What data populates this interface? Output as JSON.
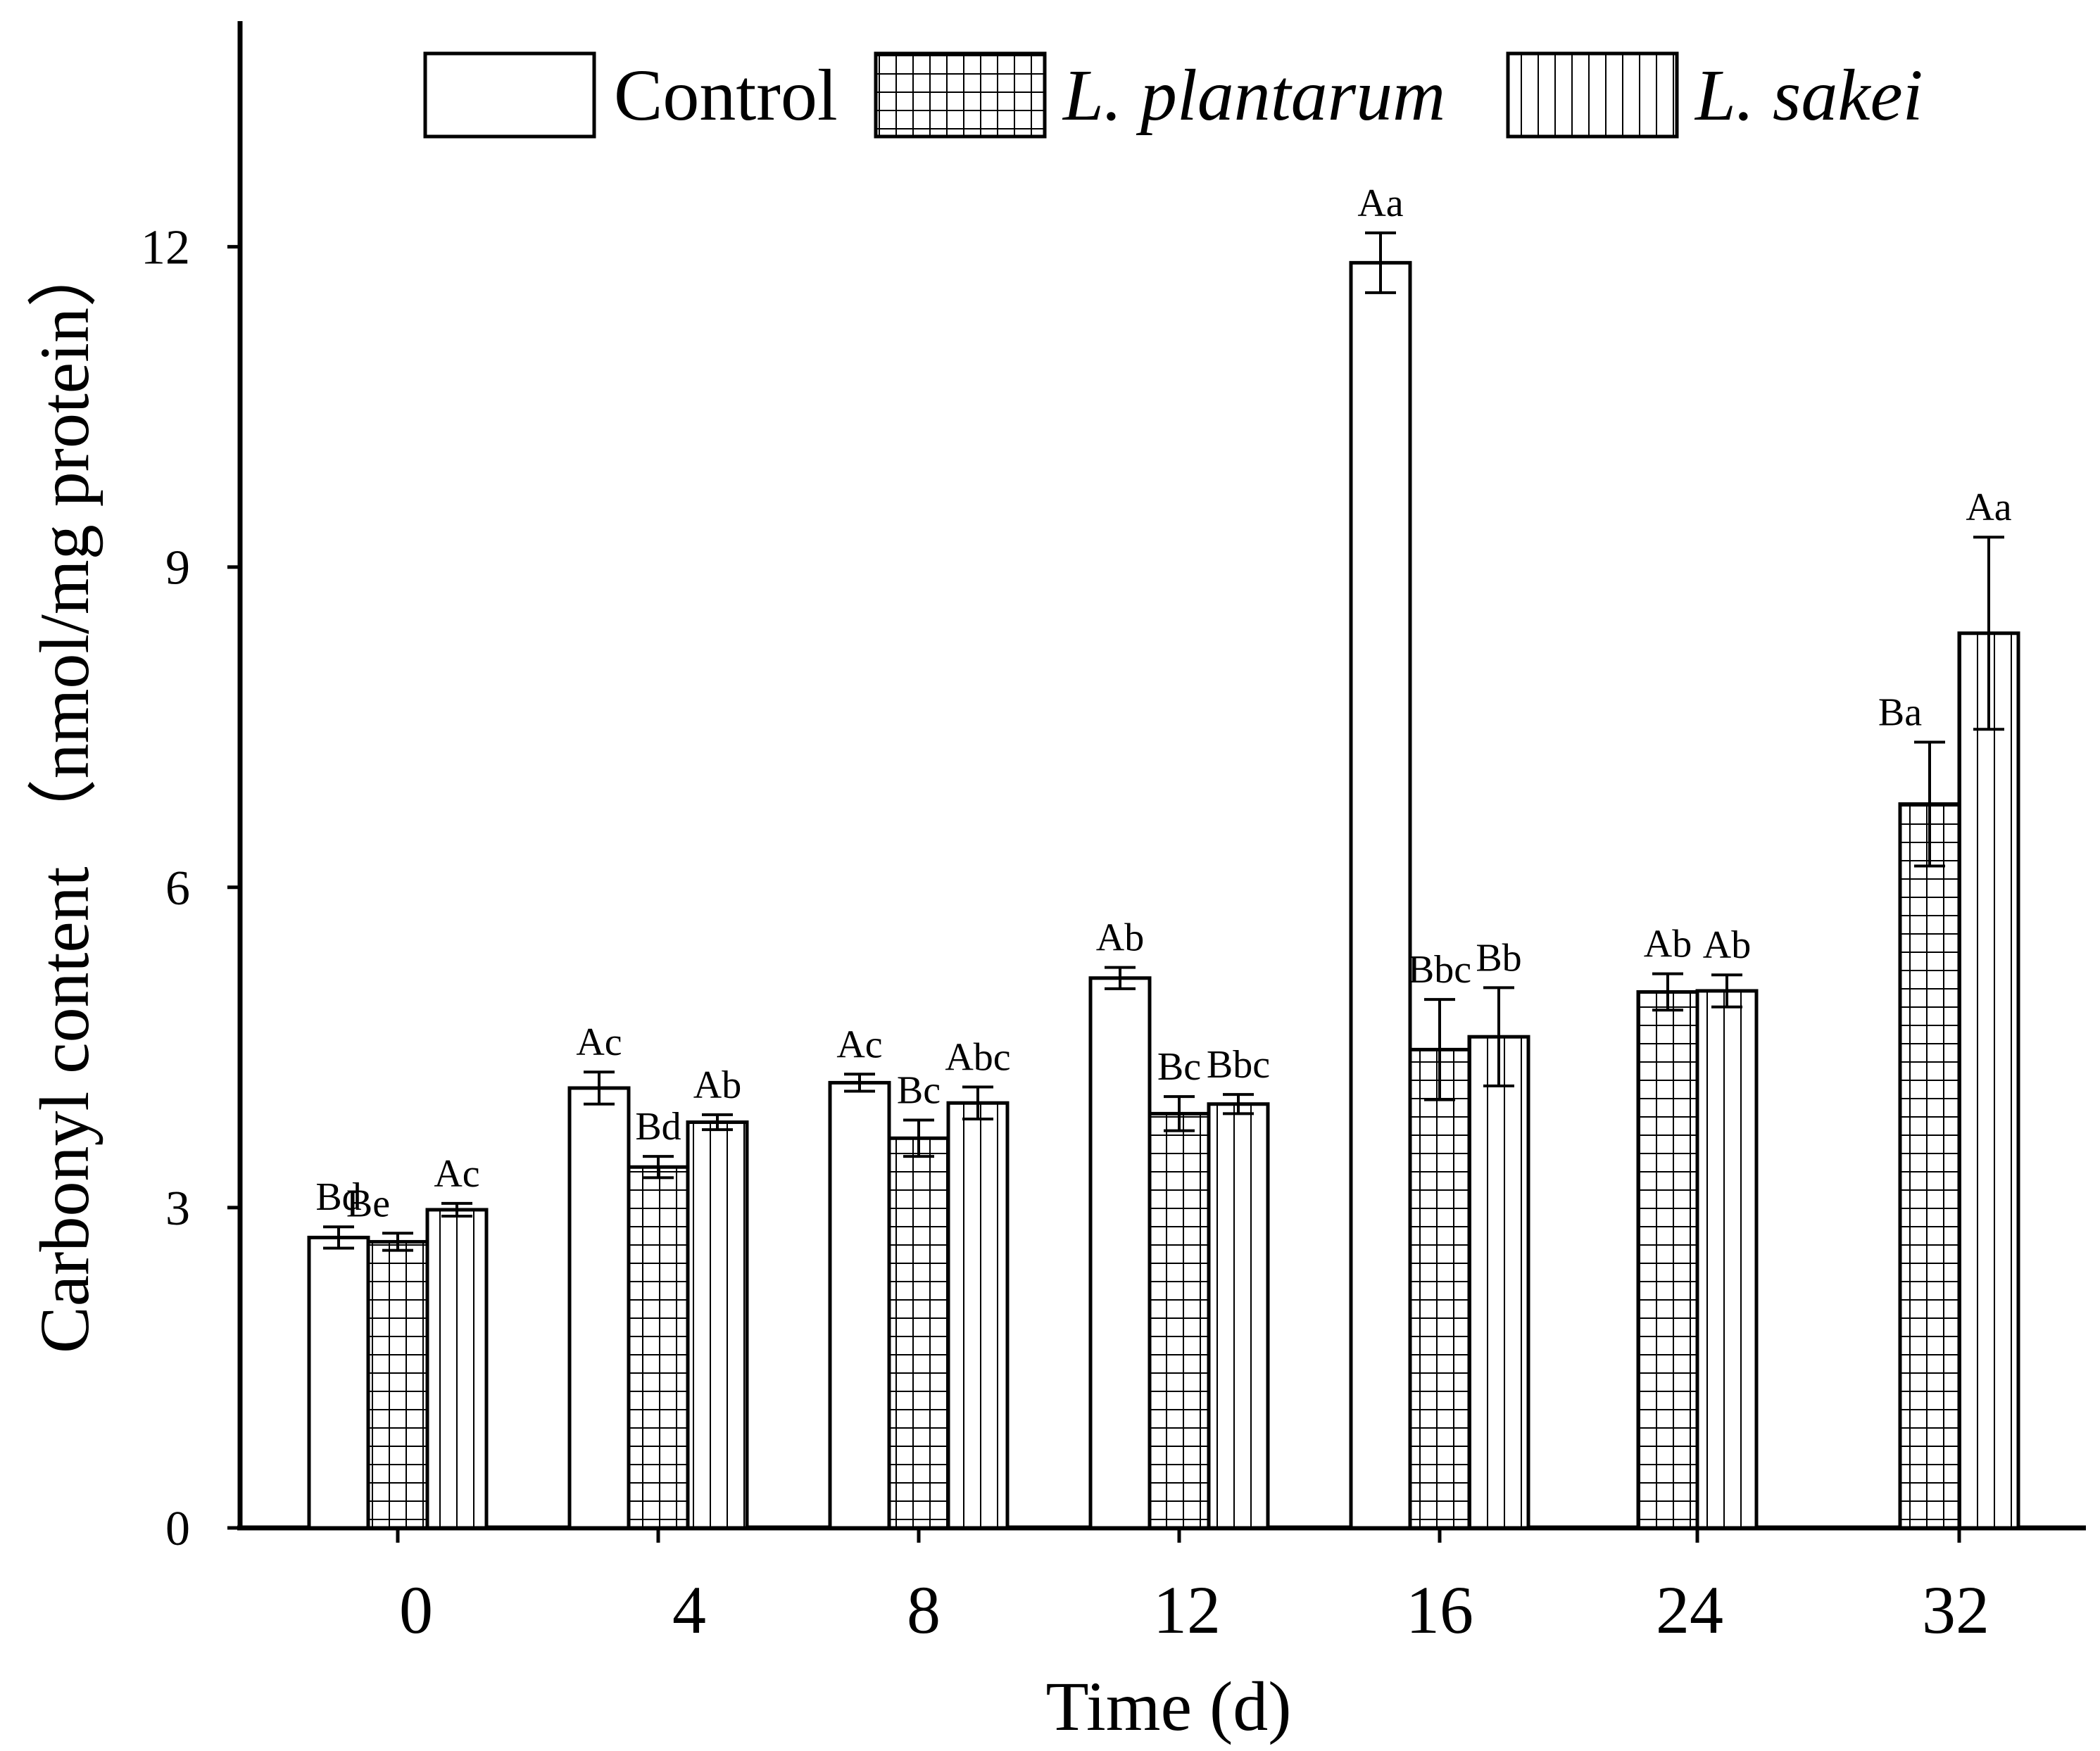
{
  "chart_data": {
    "type": "bar",
    "title": "",
    "xlabel": "Time (d)",
    "ylabel": "Carbonyl content （nmol/mg protein）",
    "ylim": [
      0,
      14.5
    ],
    "yticks": [
      "0",
      "3",
      "6",
      "9",
      "12"
    ],
    "ytick_values": [
      0,
      3,
      6,
      9,
      12
    ],
    "categories": [
      "0",
      "4",
      "8",
      "12",
      "16",
      "24",
      "32"
    ],
    "legend_position": "top",
    "series": [
      {
        "name": "Control",
        "pattern": "none",
        "values": [
          2.72,
          4.12,
          4.17,
          5.15,
          11.85,
          null,
          null
        ],
        "errors": [
          0.1,
          0.15,
          0.08,
          0.1,
          0.28,
          null,
          null
        ],
        "labels": [
          "Bd",
          "Ac",
          "Ac",
          "Ab",
          "Aa",
          null,
          null
        ]
      },
      {
        "name": "L. plantarum",
        "pattern": "grid",
        "values": [
          2.68,
          3.38,
          3.65,
          3.88,
          4.48,
          5.02,
          6.78
        ],
        "errors": [
          0.08,
          0.1,
          0.17,
          0.16,
          0.47,
          0.17,
          0.58
        ],
        "labels": [
          "Be",
          "Bd",
          "Bc",
          "Bc",
          "Bbc",
          "Ab",
          "Ba"
        ],
        "label_dx": [
          -0.5,
          0,
          0,
          0,
          0,
          0,
          -0.5
        ]
      },
      {
        "name": "L. sakei",
        "pattern": "vertical",
        "values": [
          2.98,
          3.8,
          3.98,
          3.97,
          4.6,
          5.03,
          8.38
        ],
        "errors": [
          0.06,
          0.07,
          0.15,
          0.09,
          0.46,
          0.15,
          0.9
        ],
        "labels": [
          "Ac",
          "Ab",
          "Abc",
          "Bbc",
          "Bb",
          "Ab",
          "Aa"
        ],
        "label_dx": [
          0,
          0,
          0,
          0,
          0,
          0,
          0
        ]
      }
    ],
    "colors": {
      "stroke": "#000000",
      "fill": "#ffffff"
    }
  }
}
